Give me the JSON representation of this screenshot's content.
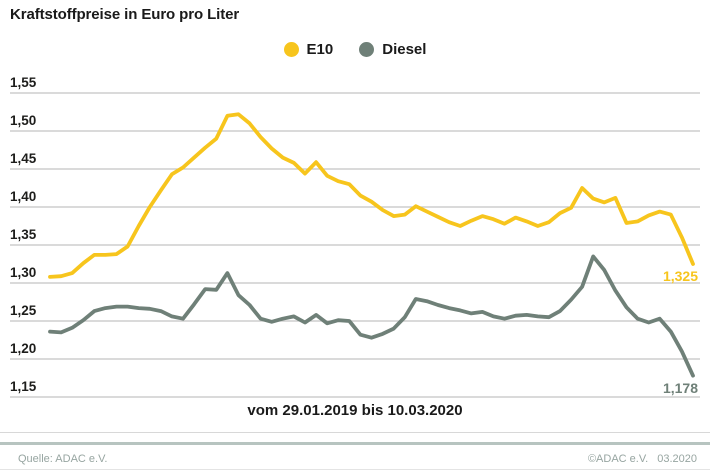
{
  "title": "Kraftstoffpreise in Euro pro Liter",
  "chart_data": {
    "type": "line",
    "title": "Kraftstoffpreise in Euro pro Liter",
    "x_label": "vom 29.01.2019 bis 10.03.2020",
    "x_start": "29.01.2019",
    "x_end": "10.03.2020",
    "x_interval": "weekly",
    "ylabel": "Euro pro Liter",
    "ylim": [
      1.15,
      1.55
    ],
    "grid": true,
    "legend_position": "top-center",
    "y_ticks": [
      "1,55",
      "1,50",
      "1,45",
      "1,40",
      "1,35",
      "1,30",
      "1,25",
      "1,20",
      "1,15"
    ],
    "y_tick_values": [
      1.55,
      1.5,
      1.45,
      1.4,
      1.35,
      1.3,
      1.25,
      1.2,
      1.15
    ],
    "series": [
      {
        "name": "E10",
        "color": "#F7C51D",
        "end_label": "1,325",
        "end_value": 1.325,
        "values": [
          1.308,
          1.309,
          1.313,
          1.326,
          1.337,
          1.337,
          1.338,
          1.348,
          1.375,
          1.4,
          1.422,
          1.443,
          1.452,
          1.465,
          1.478,
          1.49,
          1.52,
          1.522,
          1.51,
          1.492,
          1.477,
          1.465,
          1.458,
          1.444,
          1.459,
          1.441,
          1.434,
          1.43,
          1.415,
          1.407,
          1.396,
          1.388,
          1.39,
          1.401,
          1.394,
          1.387,
          1.38,
          1.375,
          1.382,
          1.388,
          1.384,
          1.378,
          1.386,
          1.381,
          1.375,
          1.38,
          1.392,
          1.399,
          1.425,
          1.411,
          1.406,
          1.412,
          1.379,
          1.381,
          1.389,
          1.394,
          1.39,
          1.36,
          1.325
        ]
      },
      {
        "name": "Diesel",
        "color": "#6F8078",
        "end_label": "1,178",
        "end_value": 1.178,
        "values": [
          1.236,
          1.235,
          1.241,
          1.251,
          1.263,
          1.267,
          1.269,
          1.269,
          1.267,
          1.266,
          1.263,
          1.256,
          1.253,
          1.272,
          1.292,
          1.291,
          1.313,
          1.284,
          1.271,
          1.253,
          1.249,
          1.253,
          1.256,
          1.248,
          1.258,
          1.247,
          1.251,
          1.25,
          1.232,
          1.228,
          1.233,
          1.24,
          1.255,
          1.279,
          1.276,
          1.271,
          1.267,
          1.264,
          1.26,
          1.262,
          1.256,
          1.253,
          1.257,
          1.258,
          1.256,
          1.255,
          1.263,
          1.278,
          1.295,
          1.335,
          1.317,
          1.29,
          1.268,
          1.253,
          1.248,
          1.253,
          1.236,
          1.21,
          1.178
        ]
      }
    ]
  },
  "footer": {
    "source": "Quelle: ADAC e.V.",
    "copyright": "©ADAC e.V.",
    "date": "03.2020"
  },
  "colors": {
    "e10": "#F7C51D",
    "diesel": "#6F8078",
    "gridline": "#C3C3C3",
    "divider": "#B7C4C0",
    "footer_text": "#97A5A1",
    "title_text": "#1A1A1A"
  }
}
